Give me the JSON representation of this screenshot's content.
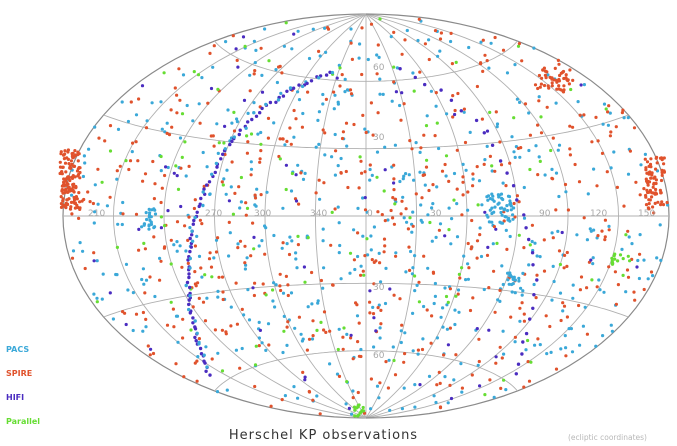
{
  "title": "Herschel KP observations",
  "coord_note": "(ecliptic coordinates)",
  "legend": [
    {
      "name": "PACS",
      "color": "#3aa8d8"
    },
    {
      "name": "SPIRE",
      "color": "#e0522c"
    },
    {
      "name": "HIFI",
      "color": "#4a2cc0"
    },
    {
      "name": "Parallel",
      "color": "#66dd33"
    }
  ],
  "projection": "aitoff",
  "longitude_labels": [
    "210",
    "270",
    "300",
    "340",
    "0",
    "30",
    "90",
    "120",
    "150"
  ],
  "latitude_labels": [
    "60",
    "30",
    "30",
    "60"
  ]
}
